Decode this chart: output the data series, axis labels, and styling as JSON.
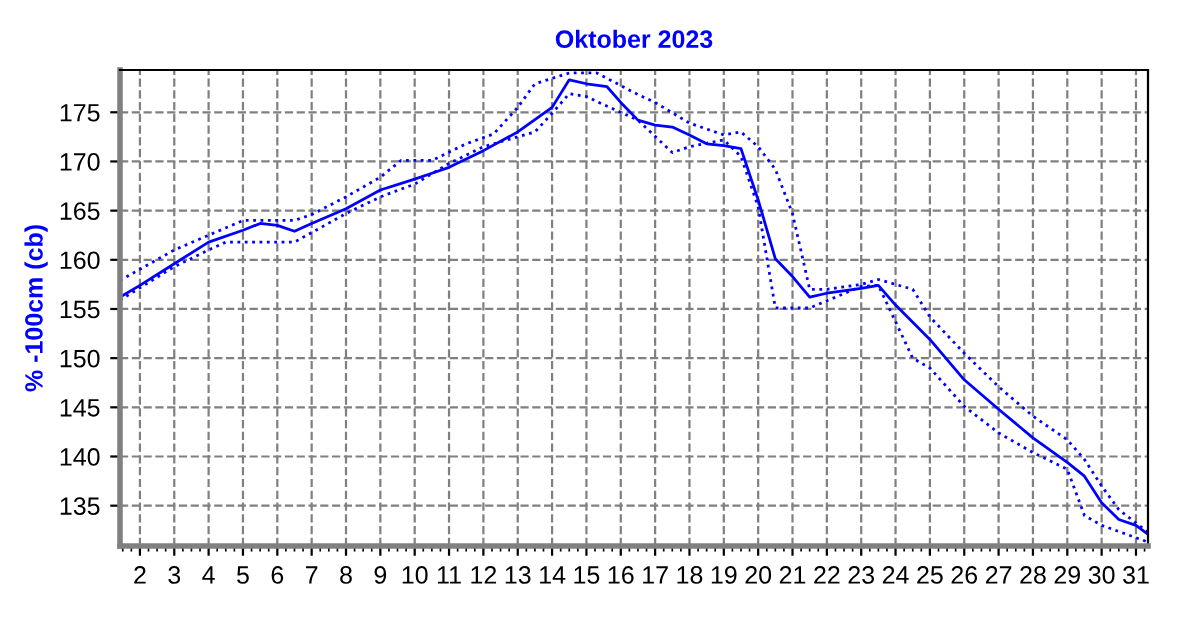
{
  "chart_data": {
    "type": "line",
    "title": "Oktober 2023",
    "ylabel": "% -100cm (cb)",
    "xlim": [
      1.42,
      31.35
    ],
    "ylim": [
      130.9,
      179.3
    ],
    "xticks": [
      2,
      3,
      4,
      5,
      6,
      7,
      8,
      9,
      10,
      11,
      12,
      13,
      14,
      15,
      16,
      17,
      18,
      19,
      20,
      21,
      22,
      23,
      24,
      25,
      26,
      27,
      28,
      29,
      30,
      31
    ],
    "yticks": [
      135,
      140,
      145,
      150,
      155,
      160,
      165,
      170,
      175
    ],
    "grid": true,
    "legend": false,
    "series": [
      {
        "color": "#0000ff",
        "line_style": "solid",
        "x": [
          1.42,
          2,
          3,
          4,
          5,
          5.5,
          6,
          6.5,
          7,
          8,
          9,
          10,
          10.5,
          11,
          12,
          13,
          14,
          14.5,
          15,
          15.6,
          16,
          16.5,
          17,
          17.5,
          18,
          18.5,
          19,
          19.5,
          20,
          20.5,
          21,
          21.5,
          22,
          23,
          23.5,
          24,
          25,
          26,
          27,
          28,
          29,
          29.5,
          30,
          30.5,
          31,
          31.35
        ],
        "values": [
          156.2,
          157.4,
          159.6,
          161.8,
          163.0,
          163.7,
          163.5,
          162.9,
          163.7,
          165.2,
          167.1,
          168.2,
          168.8,
          169.4,
          171.1,
          173.0,
          175.5,
          178.3,
          177.9,
          177.6,
          176.0,
          174.2,
          173.7,
          173.5,
          172.7,
          171.8,
          171.6,
          171.3,
          166.1,
          160.1,
          158.3,
          156.2,
          156.6,
          157.1,
          157.4,
          155.4,
          151.9,
          147.8,
          144.8,
          141.9,
          139.4,
          138.0,
          135.3,
          133.6,
          133.0,
          132.1
        ]
      },
      {
        "color": "#0000ff",
        "line_style": "dotted",
        "x": [
          1.42,
          3,
          4,
          5,
          6,
          6.5,
          7,
          8,
          9,
          9.6,
          10.5,
          11.5,
          12.3,
          13,
          13.5,
          14.5,
          15.3,
          16.5,
          17,
          18,
          19,
          19.5,
          20,
          20.5,
          21,
          21.5,
          22,
          23,
          23.5,
          24.5,
          25,
          26,
          27,
          28,
          29,
          29.5,
          30,
          30.5,
          31.35
        ],
        "values": [
          157.9,
          161.0,
          162.5,
          164.0,
          164.0,
          164.0,
          164.6,
          166.4,
          168.4,
          170.1,
          170.1,
          171.8,
          172.8,
          175.5,
          177.9,
          179.0,
          179.0,
          176.8,
          176.0,
          173.9,
          172.7,
          173.0,
          171.5,
          169.2,
          164.7,
          157.0,
          157.0,
          157.5,
          158.0,
          157.0,
          154.2,
          150.5,
          147.1,
          144.1,
          141.7,
          139.7,
          137.0,
          134.6,
          132.3
        ]
      },
      {
        "color": "#0000ff",
        "line_style": "dotted",
        "x": [
          1.42,
          3,
          4,
          4.5,
          6.5,
          8,
          9,
          10,
          11,
          12,
          13,
          13.5,
          14,
          14.5,
          15,
          15.3,
          16.5,
          17.5,
          18,
          19,
          19.5,
          20,
          20.5,
          21.5,
          23,
          23.5,
          24.5,
          25,
          26,
          27,
          28,
          29,
          29.5,
          30,
          31.35
        ],
        "values": [
          155.9,
          159.3,
          161.0,
          161.8,
          161.8,
          164.7,
          166.4,
          167.7,
          169.8,
          171.5,
          172.5,
          173.0,
          174.9,
          176.9,
          176.6,
          176.1,
          174.2,
          170.9,
          171.5,
          172.2,
          170.5,
          165.4,
          155.1,
          155.1,
          157.3,
          157.4,
          150.0,
          149.0,
          145.1,
          142.4,
          140.4,
          138.7,
          134.0,
          133.0,
          131.3
        ]
      }
    ]
  }
}
